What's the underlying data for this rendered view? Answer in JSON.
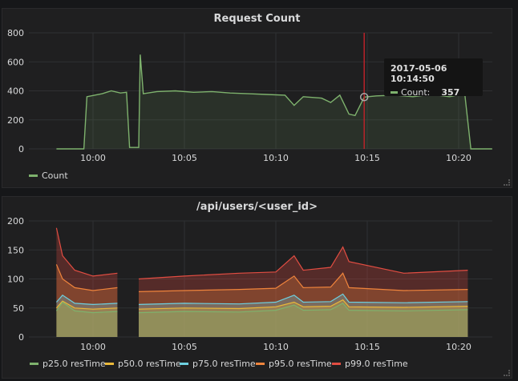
{
  "panels": {
    "request_count": {
      "title": "Request Count",
      "legend": [
        {
          "label": "Count",
          "color": "#7eb26d"
        }
      ],
      "tooltip": {
        "time": "2017-05-06 10:14:50",
        "series": "Count:",
        "value": "357"
      }
    },
    "api_users": {
      "title": "/api/users/<user_id>",
      "legend": [
        {
          "label": "p25.0 resTime",
          "color": "#7eb26d"
        },
        {
          "label": "p50.0 resTime",
          "color": "#eab839"
        },
        {
          "label": "p75.0 resTime",
          "color": "#6ed0e0"
        },
        {
          "label": "p95.0 resTime",
          "color": "#ef843c"
        },
        {
          "label": "p99.0 resTime",
          "color": "#e24d42"
        }
      ]
    }
  },
  "chart_data": [
    {
      "type": "line",
      "title": "Request Count",
      "x_ticks": [
        "10:00",
        "10:05",
        "10:10",
        "10:15",
        "10:20"
      ],
      "ylim": [
        0,
        800
      ],
      "y_ticks": [
        0,
        200,
        400,
        600,
        800
      ],
      "cursor_time": "10:14:50",
      "series": [
        {
          "name": "Count",
          "color": "#7eb26d",
          "points": [
            [
              "09:58:00",
              0
            ],
            [
              "09:59:30",
              0
            ],
            [
              "09:59:40",
              360
            ],
            [
              "10:00:30",
              380
            ],
            [
              "10:01:00",
              400
            ],
            [
              "10:01:30",
              385
            ],
            [
              "10:01:50",
              390
            ],
            [
              "10:02:00",
              10
            ],
            [
              "10:02:30",
              10
            ],
            [
              "10:02:35",
              650
            ],
            [
              "10:02:45",
              380
            ],
            [
              "10:03:30",
              395
            ],
            [
              "10:04:30",
              400
            ],
            [
              "10:05:30",
              390
            ],
            [
              "10:06:30",
              395
            ],
            [
              "10:07:30",
              385
            ],
            [
              "10:08:30",
              380
            ],
            [
              "10:09:30",
              375
            ],
            [
              "10:10:30",
              370
            ],
            [
              "10:11:00",
              300
            ],
            [
              "10:11:30",
              360
            ],
            [
              "10:12:30",
              350
            ],
            [
              "10:13:00",
              320
            ],
            [
              "10:13:30",
              370
            ],
            [
              "10:14:00",
              240
            ],
            [
              "10:14:20",
              230
            ],
            [
              "10:14:50",
              357
            ],
            [
              "10:15:30",
              365
            ],
            [
              "10:16:30",
              370
            ],
            [
              "10:17:30",
              360
            ],
            [
              "10:18:30",
              375
            ],
            [
              "10:19:30",
              360
            ],
            [
              "10:20:20",
              380
            ],
            [
              "10:20:40",
              0
            ],
            [
              "10:21:50",
              0
            ]
          ]
        }
      ]
    },
    {
      "type": "area",
      "title": "/api/users/<user_id>",
      "x_ticks": [
        "10:00",
        "10:05",
        "10:10",
        "10:15",
        "10:20"
      ],
      "ylim": [
        0,
        200
      ],
      "y_ticks": [
        0,
        50,
        100,
        150,
        200
      ],
      "gap": [
        "10:01:30",
        "10:02:10"
      ],
      "series": [
        {
          "name": "p25.0 resTime",
          "color": "#7eb26d",
          "points": [
            [
              "09:58:00",
              45
            ],
            [
              "09:58:20",
              60
            ],
            [
              "09:59:00",
              45
            ],
            [
              "10:00:00",
              42
            ],
            [
              "10:01:20",
              44
            ],
            [
              "10:02:30",
              42
            ],
            [
              "10:05:00",
              44
            ],
            [
              "10:08:00",
              43
            ],
            [
              "10:10:00",
              46
            ],
            [
              "10:11:00",
              55
            ],
            [
              "10:11:30",
              46
            ],
            [
              "10:13:00",
              47
            ],
            [
              "10:13:40",
              58
            ],
            [
              "10:14:00",
              46
            ],
            [
              "10:17:00",
              45
            ],
            [
              "10:20:30",
              47
            ]
          ]
        },
        {
          "name": "p50.0 resTime",
          "color": "#eab839",
          "points": [
            [
              "09:58:00",
              50
            ],
            [
              "09:58:20",
              62
            ],
            [
              "09:59:00",
              50
            ],
            [
              "10:00:00",
              48
            ],
            [
              "10:01:20",
              50
            ],
            [
              "10:02:30",
              48
            ],
            [
              "10:05:00",
              50
            ],
            [
              "10:08:00",
              49
            ],
            [
              "10:10:00",
              52
            ],
            [
              "10:11:00",
              60
            ],
            [
              "10:11:30",
              52
            ],
            [
              "10:13:00",
              53
            ],
            [
              "10:13:40",
              64
            ],
            [
              "10:14:00",
              52
            ],
            [
              "10:17:00",
              51
            ],
            [
              "10:20:30",
              53
            ]
          ]
        },
        {
          "name": "p75.0 resTime",
          "color": "#6ed0e0",
          "points": [
            [
              "09:58:00",
              60
            ],
            [
              "09:58:20",
              72
            ],
            [
              "09:59:00",
              58
            ],
            [
              "10:00:00",
              56
            ],
            [
              "10:01:20",
              58
            ],
            [
              "10:02:30",
              56
            ],
            [
              "10:05:00",
              58
            ],
            [
              "10:08:00",
              57
            ],
            [
              "10:10:00",
              60
            ],
            [
              "10:11:00",
              72
            ],
            [
              "10:11:30",
              60
            ],
            [
              "10:13:00",
              61
            ],
            [
              "10:13:40",
              74
            ],
            [
              "10:14:00",
              60
            ],
            [
              "10:17:00",
              59
            ],
            [
              "10:20:30",
              61
            ]
          ]
        },
        {
          "name": "p95.0 resTime",
          "color": "#ef843c",
          "points": [
            [
              "09:58:00",
              125
            ],
            [
              "09:58:20",
              100
            ],
            [
              "09:59:00",
              85
            ],
            [
              "10:00:00",
              80
            ],
            [
              "10:01:20",
              85
            ],
            [
              "10:02:30",
              78
            ],
            [
              "10:05:00",
              80
            ],
            [
              "10:08:00",
              82
            ],
            [
              "10:10:00",
              84
            ],
            [
              "10:11:00",
              105
            ],
            [
              "10:11:30",
              85
            ],
            [
              "10:13:00",
              86
            ],
            [
              "10:13:40",
              110
            ],
            [
              "10:14:00",
              85
            ],
            [
              "10:17:00",
              80
            ],
            [
              "10:20:30",
              82
            ]
          ]
        },
        {
          "name": "p99.0 resTime",
          "color": "#e24d42",
          "points": [
            [
              "09:58:00",
              188
            ],
            [
              "09:58:20",
              140
            ],
            [
              "09:59:00",
              115
            ],
            [
              "10:00:00",
              105
            ],
            [
              "10:01:20",
              110
            ],
            [
              "10:02:30",
              100
            ],
            [
              "10:05:00",
              105
            ],
            [
              "10:08:00",
              110
            ],
            [
              "10:10:00",
              112
            ],
            [
              "10:11:00",
              140
            ],
            [
              "10:11:30",
              115
            ],
            [
              "10:13:00",
              120
            ],
            [
              "10:13:40",
              155
            ],
            [
              "10:14:00",
              130
            ],
            [
              "10:17:00",
              110
            ],
            [
              "10:20:30",
              115
            ]
          ]
        }
      ]
    }
  ]
}
